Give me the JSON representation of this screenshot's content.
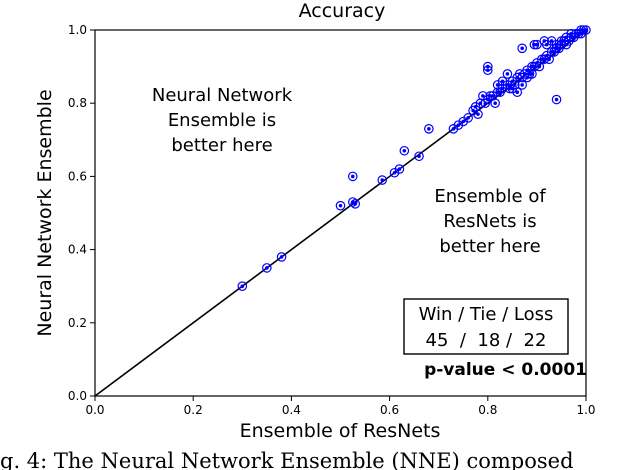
{
  "chart_data": {
    "type": "scatter",
    "title": "Accuracy",
    "xlabel": "Ensemble of ResNets",
    "ylabel": "Neural Network Ensemble",
    "xlim": [
      0.0,
      1.0
    ],
    "ylim": [
      0.0,
      1.0
    ],
    "xticks": [
      "0.0",
      "0.2",
      "0.4",
      "0.6",
      "0.8",
      "1.0"
    ],
    "yticks": [
      "0.0",
      "0.2",
      "0.4",
      "0.6",
      "0.8",
      "1.0"
    ],
    "grid": false,
    "diagonal": [
      [
        0.0,
        0.0
      ],
      [
        1.0,
        1.0
      ]
    ],
    "annotations": {
      "upper_left": [
        "Neural Network",
        "Ensemble is",
        "better here"
      ],
      "lower_right": [
        "Ensemble of",
        "ResNets is",
        "better here"
      ],
      "wtl_header": "Win / Tie / Loss",
      "wtl_values": "45  /  18 /  22",
      "pvalue": "p-value < 0.0001"
    },
    "marker_color": "#0000ff",
    "line_color": "#000000",
    "points": [
      [
        0.3,
        0.3
      ],
      [
        0.35,
        0.35
      ],
      [
        0.38,
        0.38
      ],
      [
        0.5,
        0.52
      ],
      [
        0.525,
        0.53
      ],
      [
        0.53,
        0.525
      ],
      [
        0.525,
        0.6
      ],
      [
        0.585,
        0.59
      ],
      [
        0.61,
        0.61
      ],
      [
        0.62,
        0.62
      ],
      [
        0.63,
        0.67
      ],
      [
        0.66,
        0.655
      ],
      [
        0.68,
        0.73
      ],
      [
        0.73,
        0.73
      ],
      [
        0.74,
        0.74
      ],
      [
        0.75,
        0.75
      ],
      [
        0.76,
        0.76
      ],
      [
        0.77,
        0.78
      ],
      [
        0.775,
        0.79
      ],
      [
        0.78,
        0.77
      ],
      [
        0.785,
        0.8
      ],
      [
        0.79,
        0.82
      ],
      [
        0.795,
        0.8
      ],
      [
        0.8,
        0.81
      ],
      [
        0.805,
        0.82
      ],
      [
        0.8,
        0.9
      ],
      [
        0.81,
        0.82
      ],
      [
        0.815,
        0.8
      ],
      [
        0.82,
        0.83
      ],
      [
        0.825,
        0.83
      ],
      [
        0.83,
        0.84
      ],
      [
        0.84,
        0.85
      ],
      [
        0.845,
        0.84
      ],
      [
        0.85,
        0.86
      ],
      [
        0.85,
        0.84
      ],
      [
        0.855,
        0.85
      ],
      [
        0.86,
        0.87
      ],
      [
        0.865,
        0.88
      ],
      [
        0.87,
        0.87
      ],
      [
        0.875,
        0.88
      ],
      [
        0.88,
        0.89
      ],
      [
        0.885,
        0.88
      ],
      [
        0.89,
        0.9
      ],
      [
        0.895,
        0.9
      ],
      [
        0.9,
        0.91
      ],
      [
        0.905,
        0.9
      ],
      [
        0.91,
        0.92
      ],
      [
        0.915,
        0.92
      ],
      [
        0.92,
        0.93
      ],
      [
        0.925,
        0.92
      ],
      [
        0.93,
        0.94
      ],
      [
        0.935,
        0.94
      ],
      [
        0.94,
        0.95
      ],
      [
        0.94,
        0.96
      ],
      [
        0.945,
        0.95
      ],
      [
        0.95,
        0.96
      ],
      [
        0.955,
        0.97
      ],
      [
        0.96,
        0.96
      ],
      [
        0.965,
        0.97
      ],
      [
        0.97,
        0.98
      ],
      [
        0.975,
        0.98
      ],
      [
        0.98,
        0.99
      ],
      [
        0.985,
        0.99
      ],
      [
        0.99,
        0.99
      ],
      [
        0.995,
        1.0
      ],
      [
        1.0,
        1.0
      ],
      [
        0.99,
        1.0
      ],
      [
        0.97,
        0.99
      ],
      [
        0.96,
        0.98
      ],
      [
        0.95,
        0.97
      ],
      [
        0.94,
        0.81
      ],
      [
        0.895,
        0.96
      ],
      [
        0.87,
        0.95
      ],
      [
        0.9,
        0.96
      ],
      [
        0.915,
        0.97
      ],
      [
        0.92,
        0.96
      ],
      [
        0.93,
        0.97
      ],
      [
        0.86,
        0.83
      ],
      [
        0.84,
        0.88
      ],
      [
        0.82,
        0.85
      ],
      [
        0.8,
        0.89
      ],
      [
        0.83,
        0.86
      ],
      [
        0.87,
        0.85
      ],
      [
        0.88,
        0.87
      ],
      [
        0.89,
        0.88
      ]
    ]
  },
  "caption_fragment": "g. 4: The Neural Network Ensemble (NNE) composed"
}
